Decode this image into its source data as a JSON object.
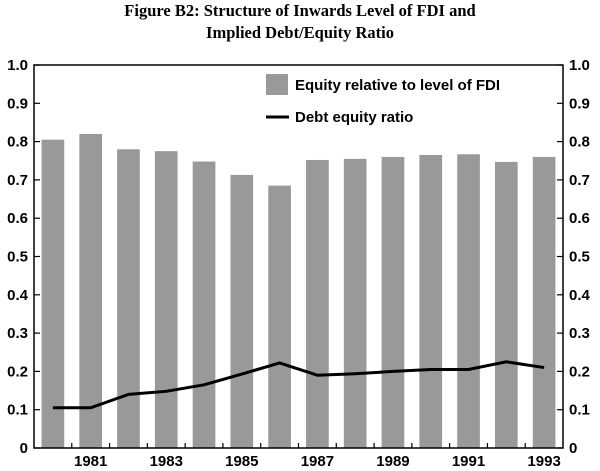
{
  "title_line1": "Figure B2: Structure of Inwards Level of FDI and",
  "title_line2": "Implied Debt/Equity Ratio",
  "chart_data": {
    "type": "bar",
    "x": [
      1980,
      1981,
      1982,
      1983,
      1984,
      1985,
      1986,
      1987,
      1988,
      1989,
      1990,
      1991,
      1992,
      1993
    ],
    "x_tick_labels": [
      "1981",
      "1983",
      "1985",
      "1987",
      "1989",
      "1991",
      "1993"
    ],
    "x_tick_values": [
      1981,
      1983,
      1985,
      1987,
      1989,
      1991,
      1993
    ],
    "series": [
      {
        "name": "Equity relative to level of FDI",
        "type": "bar",
        "color": "#999999",
        "axis": "left",
        "values": [
          0.805,
          0.82,
          0.78,
          0.775,
          0.748,
          0.713,
          0.685,
          0.752,
          0.755,
          0.76,
          0.765,
          0.767,
          0.747,
          0.76
        ]
      },
      {
        "name": "Debt equity ratio",
        "type": "line",
        "color": "#000000",
        "axis": "right",
        "values": [
          0.105,
          0.105,
          0.14,
          0.148,
          0.165,
          0.193,
          0.222,
          0.19,
          0.194,
          0.2,
          0.205,
          0.205,
          0.225,
          0.21
        ]
      }
    ],
    "y_tick_labels": [
      "0",
      "0.1",
      "0.2",
      "0.3",
      "0.4",
      "0.5",
      "0.6",
      "0.7",
      "0.8",
      "0.9",
      "1.0"
    ],
    "ylim": [
      0,
      1.0
    ],
    "y2lim": [
      0,
      1.0
    ],
    "legend_position": "top-right",
    "grid": false
  }
}
